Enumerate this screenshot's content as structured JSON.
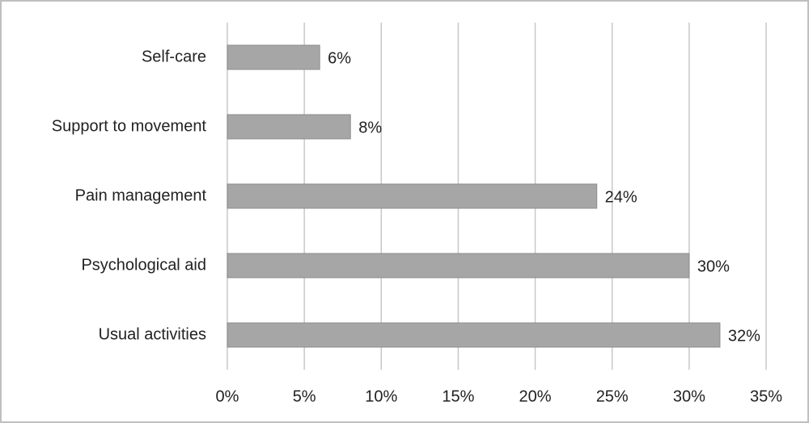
{
  "chart_data": {
    "type": "bar",
    "orientation": "horizontal",
    "categories": [
      "Self-care",
      "Support to movement",
      "Pain management",
      "Psychological aid",
      "Usual activities"
    ],
    "values": [
      6,
      8,
      24,
      30,
      32
    ],
    "value_labels": [
      "6%",
      "8%",
      "24%",
      "30%",
      "32%"
    ],
    "color": "#a6a6a6",
    "xlim": [
      0,
      35
    ],
    "xticks": [
      {
        "value": 0,
        "label": "0%"
      },
      {
        "value": 5,
        "label": "5%"
      },
      {
        "value": 10,
        "label": "10%"
      },
      {
        "value": 15,
        "label": "15%"
      },
      {
        "value": 20,
        "label": "20%"
      },
      {
        "value": 25,
        "label": "25%"
      },
      {
        "value": 30,
        "label": "30%"
      },
      {
        "value": 35,
        "label": "35%"
      }
    ],
    "grid": true
  }
}
